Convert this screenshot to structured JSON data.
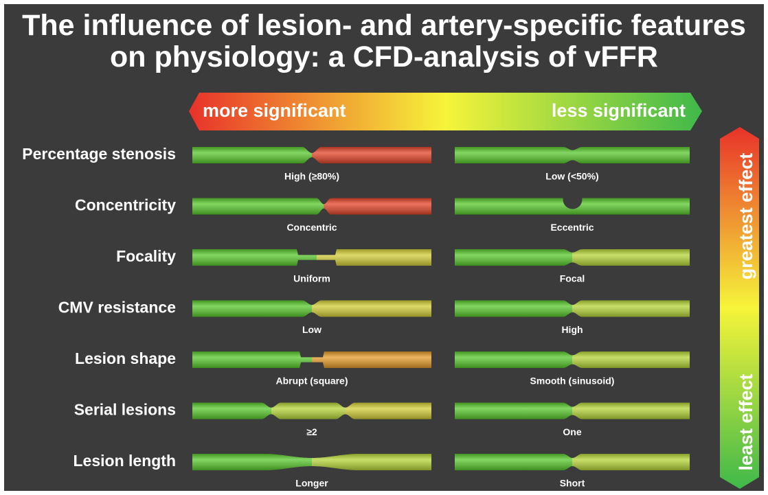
{
  "header": {
    "title": "The influence of lesion- and artery-specific features on physiology: a CFD-analysis of vFFR"
  },
  "scale": {
    "left": "more significant",
    "right": "less significant",
    "top": "greatest effect",
    "bottom": "least effect"
  },
  "rows": [
    {
      "label": "Percentage stenosis",
      "left": "High (≥80%)",
      "right": "Low (<50%)"
    },
    {
      "label": "Concentricity",
      "left": "Concentric",
      "right": "Eccentric"
    },
    {
      "label": "Focality",
      "left": "Uniform",
      "right": "Focal"
    },
    {
      "label": "CMV resistance",
      "left": "Low",
      "right": "High"
    },
    {
      "label": "Lesion shape",
      "left": "Abrupt (square)",
      "right": "Smooth (sinusoid)"
    },
    {
      "label": "Serial lesions",
      "left": "≥2",
      "right": "One"
    },
    {
      "label": "Lesion length",
      "left": "Longer",
      "right": "Short"
    }
  ]
}
